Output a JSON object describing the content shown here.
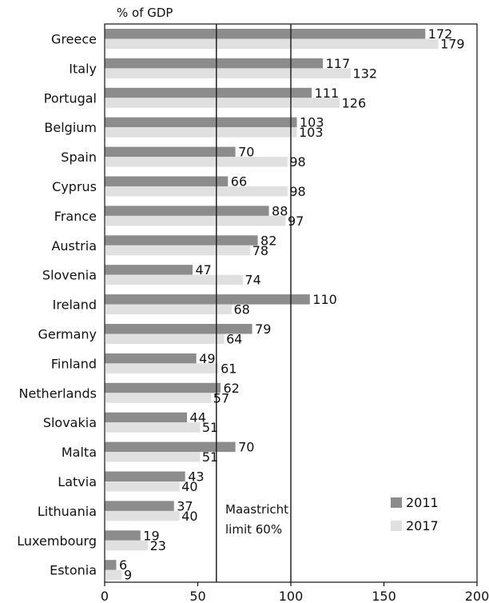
{
  "chart_data": {
    "type": "bar",
    "orientation": "horizontal",
    "unit_label": "% of GDP",
    "categories": [
      "Greece",
      "Italy",
      "Portugal",
      "Belgium",
      "Spain",
      "Cyprus",
      "France",
      "Austria",
      "Slovenia",
      "Ireland",
      "Germany",
      "Finland",
      "Netherlands",
      "Slovakia",
      "Malta",
      "Latvia",
      "Lithuania",
      "Luxembourg",
      "Estonia"
    ],
    "series": [
      {
        "name": "2011",
        "color": "#8c8c8c",
        "values": [
          172,
          117,
          111,
          103,
          70,
          66,
          88,
          82,
          47,
          110,
          79,
          49,
          62,
          44,
          70,
          43,
          37,
          19,
          6
        ]
      },
      {
        "name": "2017",
        "color": "#e0e0e0",
        "values": [
          179,
          132,
          126,
          103,
          98,
          98,
          97,
          78,
          74,
          68,
          64,
          61,
          57,
          51,
          51,
          40,
          40,
          23,
          9
        ]
      }
    ],
    "xlim": [
      0,
      200
    ],
    "xticks": [
      0,
      50,
      100,
      150,
      200
    ],
    "reference_lines": [
      {
        "value": 60,
        "label_lines": [
          "Maastricht",
          "limit 60%"
        ]
      },
      {
        "value": 100
      }
    ],
    "legend_position": "bottom-right",
    "grid": false
  }
}
